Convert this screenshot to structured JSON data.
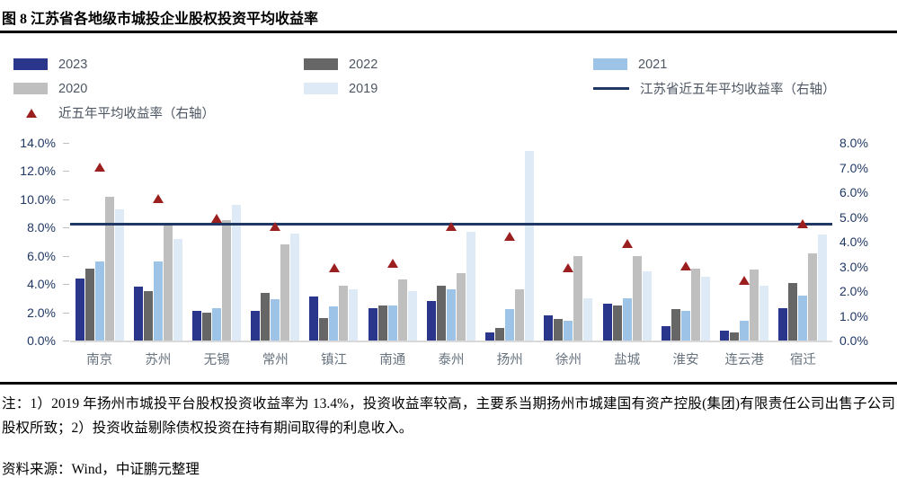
{
  "figure": {
    "title": "图 8  江苏省各地级市城投企业股权投资平均收益率",
    "note": "注：1）2019 年扬州市城投平台股权投资收益率为 13.4%，投资收益率较高，主要系当期扬州市城建国有资产控股(集团)有限责任公司出售子公司股权所致；2）投资收益剔除债权投资在持有期间取得的利息收入。",
    "source": "资料来源：Wind，中证鹏元整理"
  },
  "colors": {
    "y2023": "#2A358C",
    "y2022": "#666666",
    "y2021": "#9DC3E6",
    "y2020": "#BFBFBF",
    "y2019": "#DEEBF7",
    "avg_line": "#1F3864",
    "avg_marker": "#9C1F1F"
  },
  "legend": {
    "items": [
      {
        "kind": "swatch",
        "color_key": "y2023",
        "label": "2023"
      },
      {
        "kind": "swatch",
        "color_key": "y2022",
        "label": "2022"
      },
      {
        "kind": "swatch",
        "color_key": "y2021",
        "label": "2021"
      },
      {
        "kind": "swatch",
        "color_key": "y2020",
        "label": "2020"
      },
      {
        "kind": "swatch",
        "color_key": "y2019",
        "label": "2019"
      },
      {
        "kind": "line",
        "color_key": "avg_line",
        "label": "江苏省近五年平均收益率（右轴）"
      },
      {
        "kind": "triangle",
        "color_key": "avg_marker",
        "label": "近五年平均收益率（右轴）"
      }
    ]
  },
  "chart_data": {
    "type": "bar",
    "title": "图 8  江苏省各地级市城投企业股权投资平均收益率",
    "categories": [
      "南京",
      "苏州",
      "无锡",
      "常州",
      "镇江",
      "南通",
      "泰州",
      "扬州",
      "徐州",
      "盐城",
      "淮安",
      "连云港",
      "宿迁"
    ],
    "series": [
      {
        "name": "2023",
        "axis": "left",
        "color_key": "y2023",
        "values": [
          4.4,
          3.8,
          2.1,
          2.1,
          3.1,
          2.3,
          2.8,
          0.6,
          1.8,
          2.6,
          1.0,
          0.7,
          2.3
        ]
      },
      {
        "name": "2022",
        "axis": "left",
        "color_key": "y2022",
        "values": [
          5.1,
          3.5,
          2.0,
          3.4,
          1.6,
          2.5,
          3.9,
          0.9,
          1.5,
          2.5,
          2.2,
          0.6,
          4.1
        ]
      },
      {
        "name": "2021",
        "axis": "left",
        "color_key": "y2021",
        "values": [
          5.6,
          5.6,
          2.3,
          2.9,
          2.4,
          2.5,
          3.6,
          2.2,
          1.4,
          3.0,
          2.1,
          1.4,
          3.2
        ]
      },
      {
        "name": "2020",
        "axis": "left",
        "color_key": "y2020",
        "values": [
          10.2,
          8.2,
          8.5,
          6.8,
          3.9,
          4.3,
          4.8,
          3.6,
          6.0,
          6.0,
          5.1,
          5.0,
          6.2
        ]
      },
      {
        "name": "2019",
        "axis": "left",
        "color_key": "y2019",
        "values": [
          9.3,
          7.2,
          9.6,
          7.6,
          3.6,
          3.5,
          7.7,
          13.4,
          3.0,
          4.9,
          4.5,
          3.9,
          7.5
        ]
      }
    ],
    "scatter": {
      "name": "近五年平均收益率（右轴）",
      "axis": "right",
      "color_key": "avg_marker",
      "values": [
        7.0,
        5.7,
        4.9,
        4.6,
        2.9,
        3.1,
        4.6,
        4.2,
        2.9,
        3.9,
        3.0,
        2.4,
        4.7
      ]
    },
    "hline": {
      "name": "江苏省近五年平均收益率（右轴）",
      "axis": "right",
      "color_key": "avg_line",
      "value": 4.7
    },
    "left_axis": {
      "min": 0,
      "max": 14,
      "step": 2,
      "decimals": 1,
      "suffix": "%"
    },
    "right_axis": {
      "min": 0,
      "max": 8,
      "step": 1,
      "decimals": 1,
      "suffix": "%"
    },
    "grid": false,
    "legend_position": "top"
  }
}
